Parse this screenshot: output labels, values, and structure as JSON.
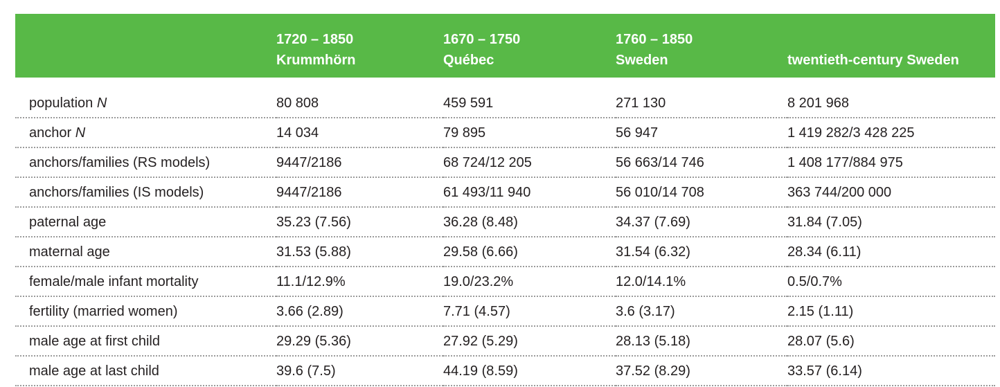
{
  "table": {
    "headers": [
      {
        "period": "",
        "name": ""
      },
      {
        "period": "1720 – 1850",
        "name": "Krummhörn"
      },
      {
        "period": "1670 – 1750",
        "name": "Québec"
      },
      {
        "period": "1760 – 1850",
        "name": "Sweden"
      },
      {
        "period": "",
        "name": "twentieth-century Sweden"
      }
    ],
    "rows": [
      {
        "label": "population",
        "label_italic": "N",
        "values": [
          "80 808",
          "459 591",
          "271 130",
          "8 201 968"
        ]
      },
      {
        "label": "anchor",
        "label_italic": "N",
        "values": [
          "14 034",
          "79 895",
          "56 947",
          "1 419 282/3 428 225"
        ]
      },
      {
        "label": "anchors/families (RS models)",
        "label_italic": "",
        "values": [
          "9447/2186",
          "68 724/12 205",
          "56 663/14 746",
          "1 408 177/884 975"
        ]
      },
      {
        "label": "anchors/families (IS models)",
        "label_italic": "",
        "values": [
          "9447/2186",
          "61 493/11 940",
          "56 010/14 708",
          "363 744/200 000"
        ]
      },
      {
        "label": "paternal age",
        "label_italic": "",
        "values": [
          "35.23 (7.56)",
          "36.28 (8.48)",
          "34.37 (7.69)",
          "31.84 (7.05)"
        ]
      },
      {
        "label": "maternal age",
        "label_italic": "",
        "values": [
          "31.53 (5.88)",
          "29.58 (6.66)",
          "31.54 (6.32)",
          "28.34 (6.11)"
        ]
      },
      {
        "label": "female/male infant mortality",
        "label_italic": "",
        "values": [
          "11.1/12.9%",
          "19.0/23.2%",
          "12.0/14.1%",
          "0.5/0.7%"
        ]
      },
      {
        "label": "fertility (married women)",
        "label_italic": "",
        "values": [
          "3.66 (2.89)",
          "7.71 (4.57)",
          "3.6 (3.17)",
          "2.15 (1.11)"
        ]
      },
      {
        "label": "male age at first child",
        "label_italic": "",
        "values": [
          "29.29 (5.36)",
          "27.92 (5.29)",
          "28.13 (5.18)",
          "28.07 (5.6)"
        ]
      },
      {
        "label": "male age at last child",
        "label_italic": "",
        "values": [
          "39.6 (7.5)",
          "44.19 (8.59)",
          "37.52 (8.29)",
          "33.57 (6.14)"
        ]
      }
    ]
  },
  "colors": {
    "header_bg": "#58b947",
    "header_text": "#ffffff",
    "body_text": "#231f20",
    "rule": "#9a9a9a"
  }
}
